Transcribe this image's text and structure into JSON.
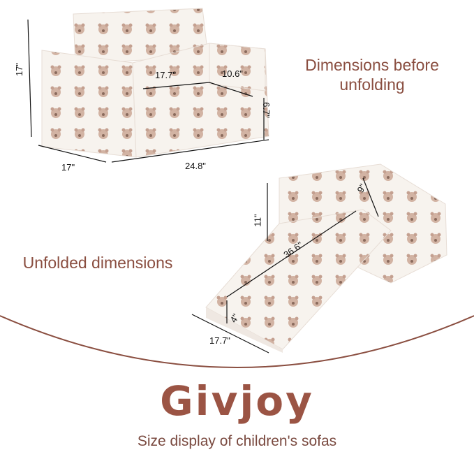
{
  "captions": {
    "folded": "Dimensions before unfolding",
    "folded_line1": "Dimensions before",
    "folded_line2": "unfolding",
    "unfolded": "Unfolded dimensions"
  },
  "folded_dims": {
    "height": "17\"",
    "seat_width": "17.7\"",
    "seat_depth": "10.6\"",
    "seat_height": "6.7\"",
    "depth": "17\"",
    "width": "24.8\""
  },
  "unfolded_dims": {
    "back_height": "11\"",
    "back_depth": "9\"",
    "length": "36.6\"",
    "thickness": "4\"",
    "width": "17.7\""
  },
  "brand": "Givjoy",
  "subtitle": "Size display of children's sofas",
  "colors": {
    "brand": "#9b5444",
    "text": "#8a4e40",
    "fabric": "#f7f3ee",
    "bear": "#c9a898",
    "arc": "#8a4e40"
  }
}
